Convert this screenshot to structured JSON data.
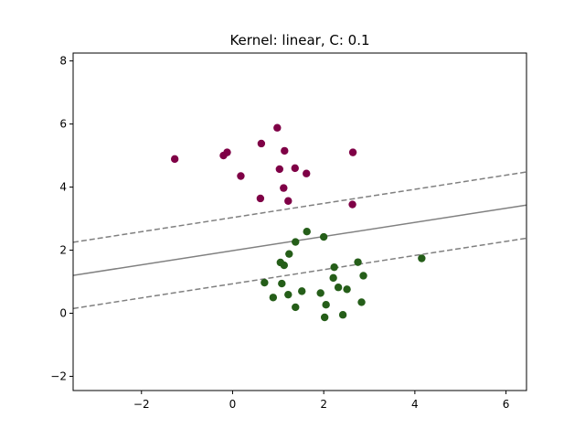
{
  "chart_data": {
    "type": "scatter",
    "title": "Kernel: linear, C: 0.1",
    "xlabel": "",
    "ylabel": "",
    "xlim": [
      -3.5,
      6.45
    ],
    "ylim": [
      -2.45,
      8.25
    ],
    "xticks": [
      -2,
      0,
      2,
      4,
      6
    ],
    "yticks": [
      -2,
      0,
      2,
      4,
      6,
      8
    ],
    "grid": false,
    "colors": {
      "class_0": "#7f0046",
      "class_1": "#255e19",
      "boundary": "#808080"
    },
    "series": [
      {
        "class": 0,
        "points": [
          [
            -1.27,
            4.89
          ],
          [
            -0.12,
            5.1
          ],
          [
            -0.2,
            5.0
          ],
          [
            0.18,
            4.35
          ],
          [
            0.63,
            5.38
          ],
          [
            0.61,
            3.64
          ],
          [
            0.98,
            5.88
          ],
          [
            1.03,
            4.57
          ],
          [
            1.14,
            5.15
          ],
          [
            1.12,
            3.97
          ],
          [
            1.22,
            3.56
          ],
          [
            1.37,
            4.6
          ],
          [
            1.62,
            4.43
          ],
          [
            2.64,
            5.1
          ],
          [
            2.63,
            3.45
          ]
        ]
      },
      {
        "class": 1,
        "points": [
          [
            0.7,
            0.97
          ],
          [
            0.89,
            0.5
          ],
          [
            1.05,
            1.61
          ],
          [
            1.08,
            0.94
          ],
          [
            1.13,
            1.52
          ],
          [
            1.22,
            0.59
          ],
          [
            1.24,
            1.88
          ],
          [
            1.38,
            2.26
          ],
          [
            1.38,
            0.19
          ],
          [
            1.52,
            0.7
          ],
          [
            1.63,
            2.59
          ],
          [
            1.93,
            0.64
          ],
          [
            2.0,
            2.42
          ],
          [
            2.02,
            -0.13
          ],
          [
            2.05,
            0.27
          ],
          [
            2.21,
            1.12
          ],
          [
            2.23,
            1.46
          ],
          [
            2.32,
            0.82
          ],
          [
            2.42,
            -0.05
          ],
          [
            2.51,
            0.76
          ],
          [
            2.75,
            1.62
          ],
          [
            2.83,
            0.35
          ],
          [
            2.87,
            1.19
          ],
          [
            4.15,
            1.74
          ]
        ]
      }
    ],
    "decision_function": {
      "boundary": [
        [
          -3.5,
          1.2
        ],
        [
          6.45,
          3.43
        ]
      ],
      "margin_upper": [
        [
          -3.5,
          2.25
        ],
        [
          6.45,
          4.48
        ]
      ],
      "margin_lower": [
        [
          -3.5,
          0.15
        ],
        [
          6.45,
          2.38
        ]
      ]
    }
  }
}
